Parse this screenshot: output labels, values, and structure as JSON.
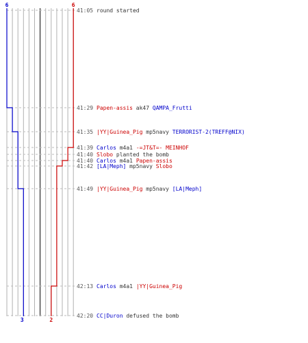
{
  "team_colors": {
    "ct": "#0000cc",
    "t": "#cc0000",
    "neutral": "#333333",
    "grid": "#b0b0b0",
    "grid_dark": "#555555"
  },
  "ct_start": "6",
  "t_start": "6",
  "ct_end": "3",
  "t_end": "2",
  "events": [
    {
      "time": "41:05",
      "segments": [
        {
          "text": "round started",
          "team": "neutral"
        }
      ],
      "ct": 6,
      "t": 6
    },
    {
      "time": "41:29",
      "segments": [
        {
          "text": "Papen-assis",
          "team": "t"
        },
        {
          "text": " ak47 ",
          "team": "neutral"
        },
        {
          "text": "QAMPA_Frutti",
          "team": "ct"
        }
      ],
      "ct": 5,
      "t": 6
    },
    {
      "time": "41:35",
      "segments": [
        {
          "text": "|YY|Guinea_Pig",
          "team": "t"
        },
        {
          "text": " mp5navy ",
          "team": "neutral"
        },
        {
          "text": "TERRORIST-2(TREFF@NIX)",
          "team": "ct"
        }
      ],
      "ct": 4,
      "t": 6
    },
    {
      "time": "41:39",
      "segments": [
        {
          "text": "Carlos",
          "team": "ct"
        },
        {
          "text": " m4a1 ",
          "team": "neutral"
        },
        {
          "text": "-=JT&T=- MEINHOF",
          "team": "t"
        }
      ],
      "ct": 4,
      "t": 5
    },
    {
      "time": "41:40",
      "segments": [
        {
          "text": "Slobo",
          "team": "t"
        },
        {
          "text": " planted the bomb",
          "team": "neutral"
        }
      ],
      "ct": 4,
      "t": 5
    },
    {
      "time": "41:40",
      "segments": [
        {
          "text": "Carlos",
          "team": "ct"
        },
        {
          "text": " m4a1 ",
          "team": "neutral"
        },
        {
          "text": "Papen-assis",
          "team": "t"
        }
      ],
      "ct": 4,
      "t": 4
    },
    {
      "time": "41:42",
      "segments": [
        {
          "text": "[LA|Meph]",
          "team": "ct"
        },
        {
          "text": " mp5navy ",
          "team": "neutral"
        },
        {
          "text": "Slobo",
          "team": "t"
        }
      ],
      "ct": 4,
      "t": 3
    },
    {
      "time": "41:49",
      "segments": [
        {
          "text": "|YY|Guinea_Pig",
          "team": "t"
        },
        {
          "text": " mp5navy ",
          "team": "neutral"
        },
        {
          "text": "[LA|Meph]",
          "team": "ct"
        }
      ],
      "ct": 3,
      "t": 3
    },
    {
      "time": "42:13",
      "segments": [
        {
          "text": "Carlos",
          "team": "ct"
        },
        {
          "text": " m4a1 ",
          "team": "neutral"
        },
        {
          "text": "|YY|Guinea_Pig",
          "team": "t"
        }
      ],
      "ct": 3,
      "t": 2
    },
    {
      "time": "42:20",
      "segments": [
        {
          "text": "CC|Duron",
          "team": "ct"
        },
        {
          "text": " defused the bomb",
          "team": "neutral"
        }
      ],
      "ct": 3,
      "t": 2
    }
  ]
}
